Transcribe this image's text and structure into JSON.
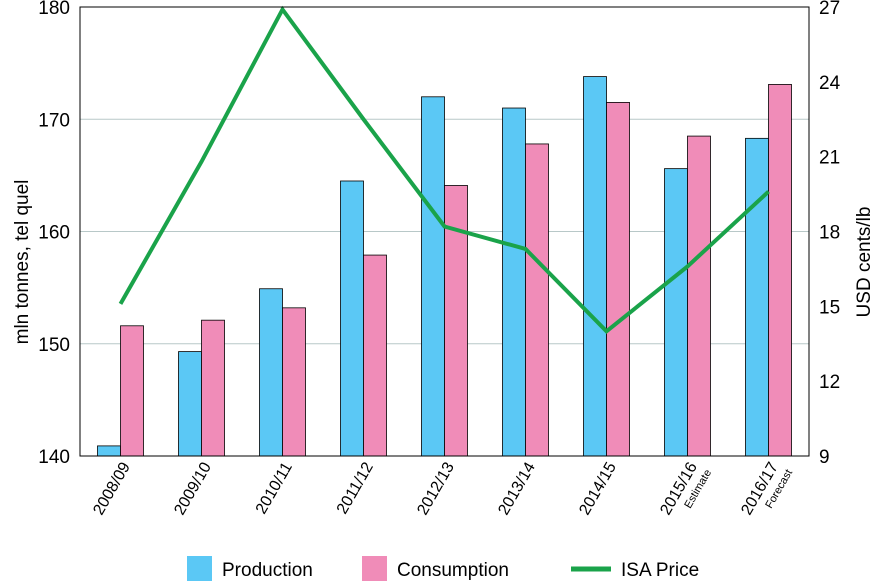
{
  "chart_data": {
    "type": "bar",
    "categories": [
      "2008/09",
      "2009/10",
      "2010/11",
      "2011/12",
      "2012/13",
      "2013/14",
      "2014/15",
      "2015/16",
      "2016/17"
    ],
    "category_notes": [
      "",
      "",
      "",
      "",
      "",
      "",
      "",
      "Estimate",
      "Forecast"
    ],
    "series": [
      {
        "name": "Production",
        "values": [
          140.9,
          149.3,
          154.9,
          164.5,
          172.0,
          171.0,
          173.8,
          165.6,
          168.3
        ],
        "color": "#5bc8f5"
      },
      {
        "name": "Consumption",
        "values": [
          151.6,
          152.1,
          153.2,
          157.9,
          164.1,
          167.8,
          171.5,
          168.5,
          173.1
        ],
        "color": "#f08cb8"
      }
    ],
    "line_series": {
      "name": "ISA Price",
      "values": [
        15.1,
        20.8,
        26.9,
        22.5,
        18.2,
        17.3,
        14.0,
        16.6,
        19.6
      ],
      "color": "#1aa34a",
      "axis": "right"
    },
    "ylabel": "mln tonnes, tel quel",
    "ylabel_right": "USD cents/lb",
    "ylim": [
      140,
      180
    ],
    "yticks": [
      140,
      150,
      160,
      170,
      180
    ],
    "ylim_right": [
      9,
      27
    ],
    "yticks_right": [
      9,
      12,
      15,
      18,
      21,
      24,
      27
    ],
    "grid": true,
    "legend": "bottom"
  }
}
